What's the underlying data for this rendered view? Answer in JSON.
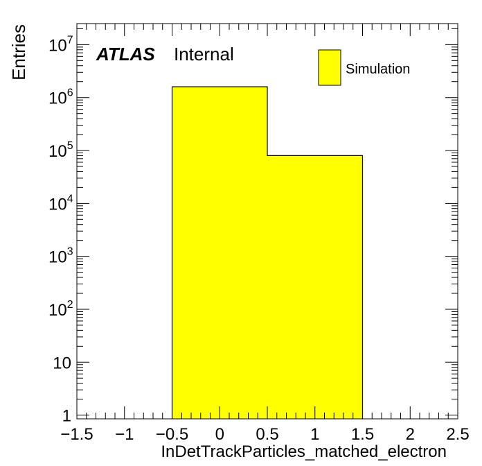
{
  "chart_data": {
    "type": "bar",
    "title": "",
    "xlabel": "InDetTrackParticles_matched_electron",
    "ylabel": "Entries",
    "xlim": [
      -1.5,
      2.5
    ],
    "ylim": [
      0.85,
      25000000
    ],
    "yscale": "log",
    "bins": [
      {
        "low": -0.5,
        "high": 0.5,
        "value": 1600000
      },
      {
        "low": 0.5,
        "high": 1.5,
        "value": 80000
      }
    ],
    "x_ticks": [
      {
        "value": -1.5,
        "label": "−1.5"
      },
      {
        "value": -1,
        "label": "−1"
      },
      {
        "value": -0.5,
        "label": "−0.5"
      },
      {
        "value": 0,
        "label": "0"
      },
      {
        "value": 0.5,
        "label": "0.5"
      },
      {
        "value": 1,
        "label": "1"
      },
      {
        "value": 1.5,
        "label": "1.5"
      },
      {
        "value": 2,
        "label": "2"
      },
      {
        "value": 2.5,
        "label": "2.5"
      }
    ],
    "y_ticks": [
      {
        "value": 1,
        "base": "1",
        "exp": ""
      },
      {
        "value": 10,
        "base": "10",
        "exp": ""
      },
      {
        "value": 100,
        "base": "10",
        "exp": "2"
      },
      {
        "value": 1000,
        "base": "10",
        "exp": "3"
      },
      {
        "value": 10000,
        "base": "10",
        "exp": "4"
      },
      {
        "value": 100000,
        "base": "10",
        "exp": "5"
      },
      {
        "value": 1000000,
        "base": "10",
        "exp": "6"
      },
      {
        "value": 10000000,
        "base": "10",
        "exp": "7"
      }
    ],
    "legend": {
      "position": "top-right",
      "entries": [
        {
          "label": "Simulation",
          "color": "#ffff00"
        }
      ]
    },
    "annotation": {
      "experiment": "ATLAS",
      "status": "Internal"
    },
    "colors": {
      "fill": "#ffff00",
      "line": "#000000"
    }
  }
}
